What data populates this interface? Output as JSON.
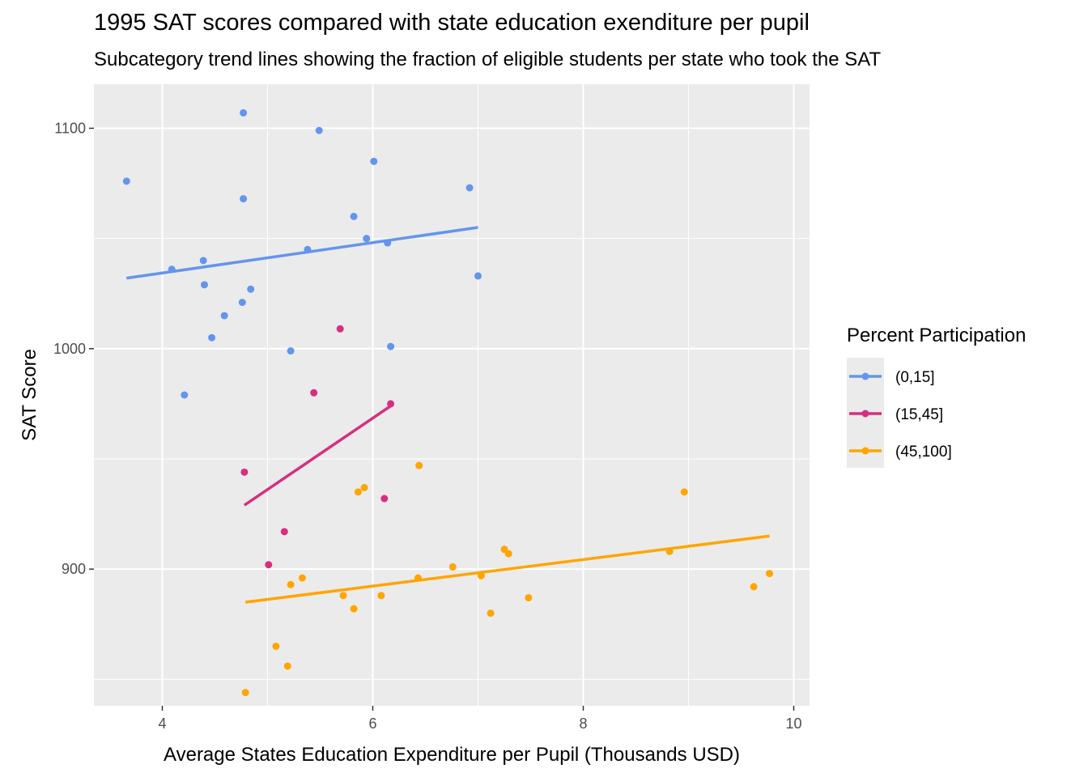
{
  "chart_data": {
    "type": "scatter",
    "title": "1995 SAT scores compared with state education exenditure per pupil",
    "subtitle": "Subcategory trend lines showing the fraction of eligible students per state who took the SAT",
    "xlabel": "Average States Education Expenditure per Pupil (Thousands USD)",
    "ylabel": "SAT Score",
    "xlim": [
      3.35,
      10.15
    ],
    "ylim": [
      838,
      1120
    ],
    "xticks": [
      4,
      6,
      8,
      10
    ],
    "yticks": [
      900,
      1000,
      1100
    ],
    "grid": true,
    "legend": {
      "title": "Percent Participation",
      "position": "right"
    },
    "series": [
      {
        "name": "(0,15]",
        "color": "#6495ed",
        "points": [
          [
            3.66,
            1076
          ],
          [
            4.09,
            1036
          ],
          [
            4.21,
            979
          ],
          [
            4.39,
            1040
          ],
          [
            4.4,
            1029
          ],
          [
            4.47,
            1005
          ],
          [
            4.59,
            1015
          ],
          [
            4.76,
            1021
          ],
          [
            4.77,
            1107
          ],
          [
            4.77,
            1068
          ],
          [
            4.84,
            1027
          ],
          [
            5.22,
            999
          ],
          [
            5.38,
            1045
          ],
          [
            5.49,
            1099
          ],
          [
            5.82,
            1060
          ],
          [
            5.94,
            1050
          ],
          [
            6.01,
            1085
          ],
          [
            6.14,
            1048
          ],
          [
            6.17,
            1001
          ],
          [
            6.92,
            1073
          ],
          [
            7.0,
            1033
          ]
        ],
        "trend": [
          [
            3.66,
            1032
          ],
          [
            7.0,
            1055
          ]
        ]
      },
      {
        "name": "(15,45]",
        "color": "#d62f81",
        "points": [
          [
            4.78,
            944
          ],
          [
            5.01,
            902
          ],
          [
            5.16,
            917
          ],
          [
            5.44,
            980
          ],
          [
            5.69,
            1009
          ],
          [
            6.11,
            932
          ],
          [
            6.17,
            975
          ]
        ],
        "trend": [
          [
            4.78,
            929
          ],
          [
            6.17,
            974
          ]
        ]
      },
      {
        "name": "(45,100]",
        "color": "#ffa500",
        "points": [
          [
            4.79,
            844
          ],
          [
            5.08,
            865
          ],
          [
            5.19,
            856
          ],
          [
            5.22,
            893
          ],
          [
            5.33,
            896
          ],
          [
            5.72,
            888
          ],
          [
            5.82,
            882
          ],
          [
            5.86,
            935
          ],
          [
            5.92,
            937
          ],
          [
            6.08,
            888
          ],
          [
            6.43,
            896
          ],
          [
            6.44,
            947
          ],
          [
            6.76,
            901
          ],
          [
            7.03,
            897
          ],
          [
            7.12,
            880
          ],
          [
            7.25,
            909
          ],
          [
            7.29,
            907
          ],
          [
            7.48,
            887
          ],
          [
            8.82,
            908
          ],
          [
            8.96,
            935
          ],
          [
            9.62,
            892
          ],
          [
            9.77,
            898
          ]
        ],
        "trend": [
          [
            4.79,
            885
          ],
          [
            9.77,
            915
          ]
        ]
      }
    ]
  }
}
